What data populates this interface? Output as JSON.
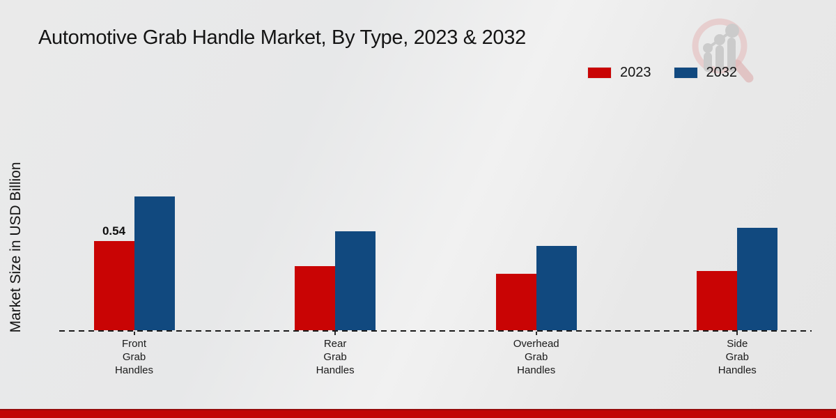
{
  "chart_data": {
    "type": "bar",
    "title": "Automotive Grab Handle Market, By Type, 2023 & 2032",
    "xlabel": "",
    "ylabel": "Market Size in USD Billion",
    "categories": [
      "Front Grab Handles",
      "Rear Grab Handles",
      "Overhead Grab Handles",
      "Side Grab Handles"
    ],
    "series": [
      {
        "name": "2023",
        "color": "#c90404",
        "values": [
          0.54,
          0.39,
          0.34,
          0.36
        ],
        "value_labels": [
          "0.54",
          null,
          null,
          null
        ]
      },
      {
        "name": "2032",
        "color": "#11497f",
        "values": [
          0.81,
          0.6,
          0.51,
          0.62
        ],
        "value_labels": [
          null,
          null,
          null,
          null
        ]
      }
    ],
    "ylim": [
      0,
      0.9
    ],
    "grid": false,
    "legend_position": "top-right",
    "baseline_style": "dashed",
    "y_axis_ticks_visible": false
  },
  "branding": {
    "logo_name": "magnifier-bar-chart-logo",
    "footer_bar_color": "#c20505"
  }
}
